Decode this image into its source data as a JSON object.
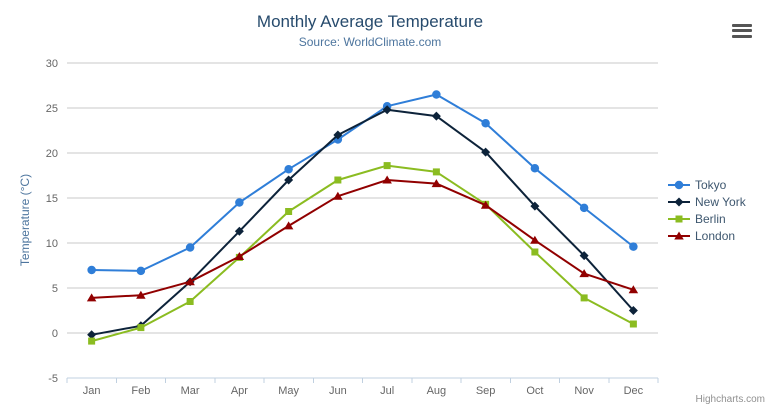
{
  "chart": {
    "credits": "Highcharts.com",
    "menu_icon": "hamburger-menu-icon",
    "colors": {
      "title": "#274b6d",
      "subtitle": "#4d759e",
      "axis_label": "#666666",
      "axis_line": "#C0D0E0",
      "gridline": "#C8C8C8",
      "legend_text": "#3E576F",
      "credits_text": "#909090"
    }
  },
  "chart_data": {
    "type": "line",
    "title": "Monthly Average Temperature",
    "subtitle": "Source: WorldClimate.com",
    "xlabel": "",
    "ylabel": "Temperature (°C)",
    "ylim": [
      -5,
      30
    ],
    "yticks": [
      -5,
      0,
      5,
      10,
      15,
      20,
      25,
      30
    ],
    "grid": true,
    "legend_position": "right",
    "categories": [
      "Jan",
      "Feb",
      "Mar",
      "Apr",
      "May",
      "Jun",
      "Jul",
      "Aug",
      "Sep",
      "Oct",
      "Nov",
      "Dec"
    ],
    "series": [
      {
        "name": "Tokyo",
        "color": "#2f7ed8",
        "marker": "circle",
        "values": [
          7.0,
          6.9,
          9.5,
          14.5,
          18.2,
          21.5,
          25.2,
          26.5,
          23.3,
          18.3,
          13.9,
          9.6
        ]
      },
      {
        "name": "New York",
        "color": "#0d233a",
        "marker": "diamond",
        "values": [
          -0.2,
          0.8,
          5.7,
          11.3,
          17.0,
          22.0,
          24.8,
          24.1,
          20.1,
          14.1,
          8.6,
          2.5
        ]
      },
      {
        "name": "Berlin",
        "color": "#8bbc21",
        "marker": "square",
        "values": [
          -0.9,
          0.6,
          3.5,
          8.4,
          13.5,
          17.0,
          18.6,
          17.9,
          14.3,
          9.0,
          3.9,
          1.0
        ]
      },
      {
        "name": "London",
        "color": "#910000",
        "marker": "triangle",
        "values": [
          3.9,
          4.2,
          5.7,
          8.5,
          11.9,
          15.2,
          17.0,
          16.6,
          14.2,
          10.3,
          6.6,
          4.8
        ]
      }
    ]
  }
}
